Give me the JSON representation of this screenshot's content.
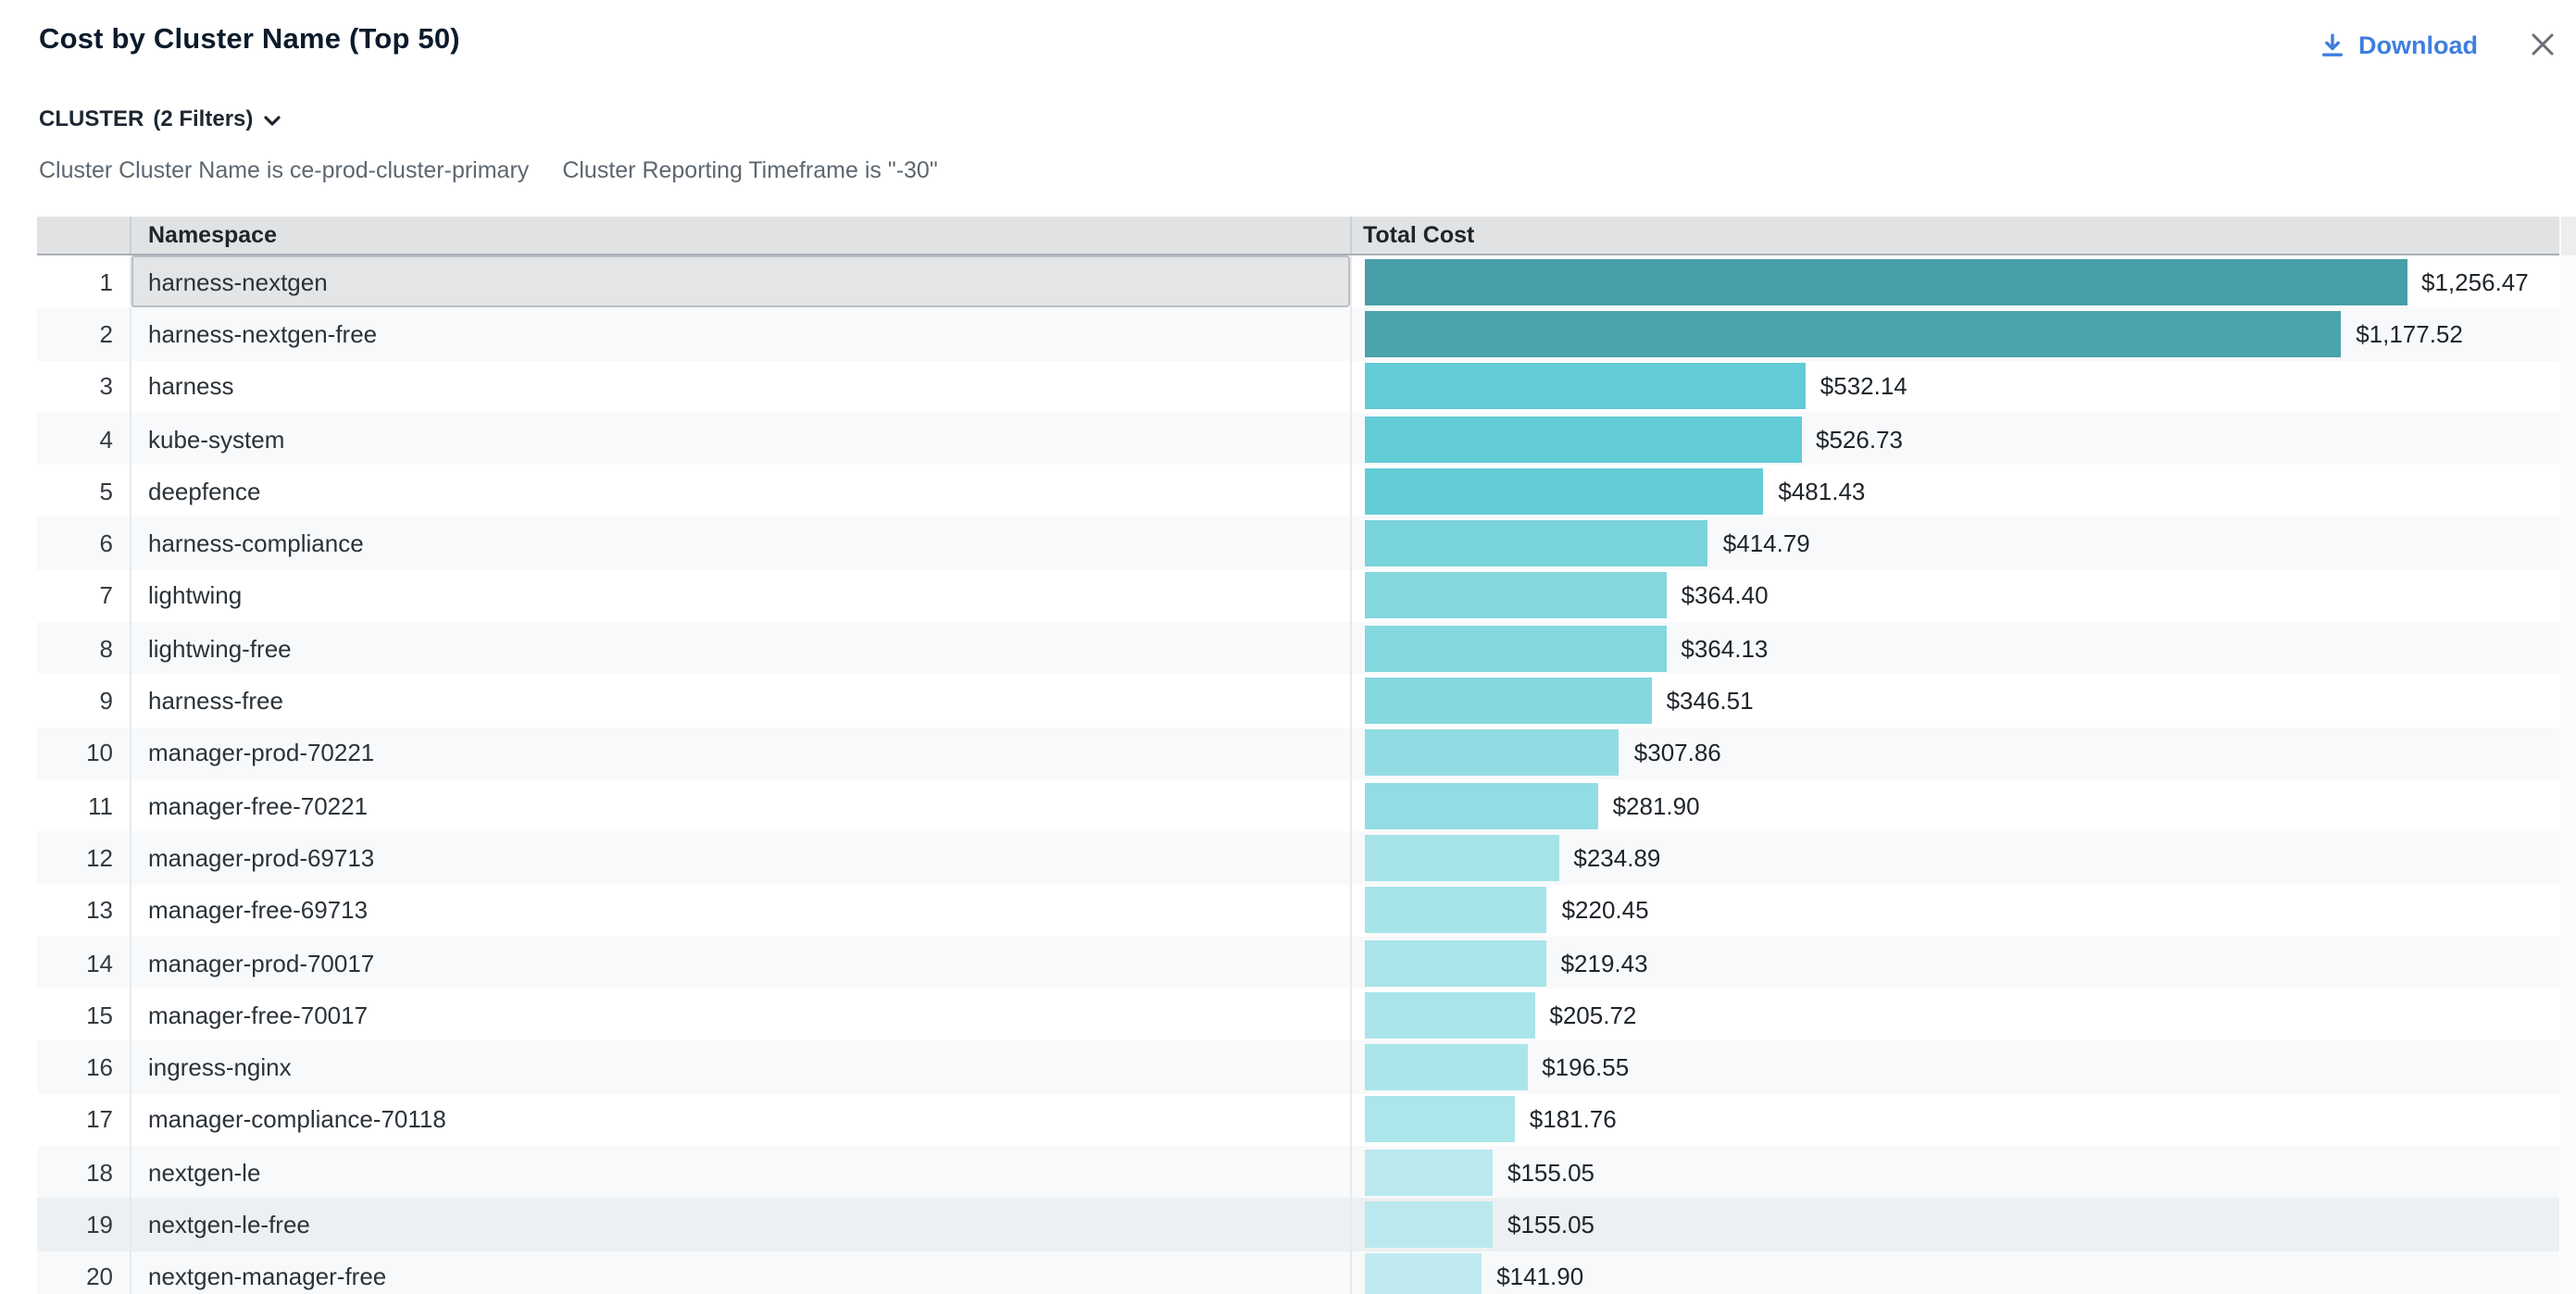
{
  "header": {
    "title": "Cost by Cluster Name (Top 50)",
    "download_label": "Download"
  },
  "filters": {
    "group_label": "CLUSTER",
    "count_label": "(2 Filters)",
    "applied": [
      "Cluster Cluster Name is ce-prod-cluster-primary",
      "Cluster Reporting Timeframe is \"-30\""
    ]
  },
  "table": {
    "columns": [
      "Namespace",
      "Total Cost"
    ],
    "rows": [
      {
        "rank": 1,
        "namespace": "harness-nextgen",
        "cost_label": "$1,256.47",
        "value": 1256.47,
        "bar_color": "#479ea8",
        "state": "selected"
      },
      {
        "rank": 2,
        "namespace": "harness-nextgen-free",
        "cost_label": "$1,177.52",
        "value": 1177.52,
        "bar_color": "#4aa3ad",
        "state": null
      },
      {
        "rank": 3,
        "namespace": "harness",
        "cost_label": "$532.14",
        "value": 532.14,
        "bar_color": "#61cbd6",
        "state": null
      },
      {
        "rank": 4,
        "namespace": "kube-system",
        "cost_label": "$526.73",
        "value": 526.73,
        "bar_color": "#61cbd6",
        "state": null
      },
      {
        "rank": 5,
        "namespace": "deepfence",
        "cost_label": "$481.43",
        "value": 481.43,
        "bar_color": "#63ccd7",
        "state": null
      },
      {
        "rank": 6,
        "namespace": "harness-compliance",
        "cost_label": "$414.79",
        "value": 414.79,
        "bar_color": "#79d3da",
        "state": null
      },
      {
        "rank": 7,
        "namespace": "lightwing",
        "cost_label": "$364.40",
        "value": 364.4,
        "bar_color": "#83d7de",
        "state": null
      },
      {
        "rank": 8,
        "namespace": "lightwing-free",
        "cost_label": "$364.13",
        "value": 364.13,
        "bar_color": "#83d7de",
        "state": null
      },
      {
        "rank": 9,
        "namespace": "harness-free",
        "cost_label": "$346.51",
        "value": 346.51,
        "bar_color": "#85d8df",
        "state": null
      },
      {
        "rank": 10,
        "namespace": "manager-prod-70221",
        "cost_label": "$307.86",
        "value": 307.86,
        "bar_color": "#90dce2",
        "state": null
      },
      {
        "rank": 11,
        "namespace": "manager-free-70221",
        "cost_label": "$281.90",
        "value": 281.9,
        "bar_color": "#92dde3",
        "state": null
      },
      {
        "rank": 12,
        "namespace": "manager-prod-69713",
        "cost_label": "$234.89",
        "value": 234.89,
        "bar_color": "#a5e3e9",
        "state": null
      },
      {
        "rank": 13,
        "namespace": "manager-free-69713",
        "cost_label": "$220.45",
        "value": 220.45,
        "bar_color": "#a6e4e9",
        "state": null
      },
      {
        "rank": 14,
        "namespace": "manager-prod-70017",
        "cost_label": "$219.43",
        "value": 219.43,
        "bar_color": "#a9e5ea",
        "state": null
      },
      {
        "rank": 15,
        "namespace": "manager-free-70017",
        "cost_label": "$205.72",
        "value": 205.72,
        "bar_color": "#a9e5ea",
        "state": null
      },
      {
        "rank": 16,
        "namespace": "ingress-nginx",
        "cost_label": "$196.55",
        "value": 196.55,
        "bar_color": "#aae5ea",
        "state": null
      },
      {
        "rank": 17,
        "namespace": "manager-compliance-70118",
        "cost_label": "$181.76",
        "value": 181.76,
        "bar_color": "#abe6eb",
        "state": null
      },
      {
        "rank": 18,
        "namespace": "nextgen-le",
        "cost_label": "$155.05",
        "value": 155.05,
        "bar_color": "#b9e9ee",
        "state": null
      },
      {
        "rank": 19,
        "namespace": "nextgen-le-free",
        "cost_label": "$155.05",
        "value": 155.05,
        "bar_color": "#b9e9ee",
        "state": "hover"
      },
      {
        "rank": 20,
        "namespace": "nextgen-manager-free",
        "cost_label": "$141.90",
        "value": 141.9,
        "bar_color": "#bfebf0",
        "state": null
      }
    ]
  },
  "chart_data": {
    "type": "bar",
    "orientation": "horizontal",
    "title": "Cost by Cluster Name (Top 50)",
    "series_label": "Total Cost",
    "categories": [
      "harness-nextgen",
      "harness-nextgen-free",
      "harness",
      "kube-system",
      "deepfence",
      "harness-compliance",
      "lightwing",
      "lightwing-free",
      "harness-free",
      "manager-prod-70221",
      "manager-free-70221",
      "manager-prod-69713",
      "manager-free-69713",
      "manager-prod-70017",
      "manager-free-70017",
      "ingress-nginx",
      "manager-compliance-70118",
      "nextgen-le",
      "nextgen-le-free",
      "nextgen-manager-free"
    ],
    "values": [
      1256.47,
      1177.52,
      532.14,
      526.73,
      481.43,
      414.79,
      364.4,
      364.13,
      346.51,
      307.86,
      281.9,
      234.89,
      220.45,
      219.43,
      205.72,
      196.55,
      181.76,
      155.05,
      155.05,
      141.9
    ],
    "value_labels": [
      "$1,256.47",
      "$1,177.52",
      "$532.14",
      "$526.73",
      "$481.43",
      "$414.79",
      "$364.40",
      "$364.13",
      "$346.51",
      "$307.86",
      "$281.90",
      "$234.89",
      "$220.45",
      "$219.43",
      "$205.72",
      "$196.55",
      "$181.76",
      "$155.05",
      "$155.05",
      "$141.90"
    ],
    "max_value": 1256.47,
    "grid": false,
    "legend": false
  },
  "icons": {
    "download": "download-arrow-icon",
    "close": "close-icon",
    "chevron": "chevron-down-icon"
  },
  "colors": {
    "accent_blue": "#3f7ee0",
    "header_bg": "#e0e2e4",
    "stripe_bg": "#f8f9fa",
    "hover_bg": "#edf0f2",
    "selected_bg": "#e4e5e7",
    "selected_ring": "#b9bfc6",
    "title_text": "#0c1b2b",
    "muted_text": "#5d6770"
  }
}
